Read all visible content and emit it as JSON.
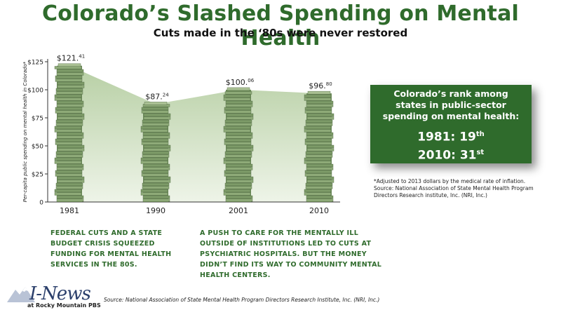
{
  "header": {
    "title": "Colorado’s Slashed Spending on Mental Health",
    "subtitle": "Cuts made in the ‘80s were never restored"
  },
  "chart_data": {
    "type": "bar",
    "categories": [
      "1981",
      "1990",
      "2001",
      "2010"
    ],
    "values": [
      121.41,
      87.24,
      100.06,
      96.8
    ],
    "value_labels": [
      {
        "main": "$121.",
        "cents": "41"
      },
      {
        "main": "$87.",
        "cents": "24"
      },
      {
        "main": "$100.",
        "cents": "06"
      },
      {
        "main": "$96.",
        "cents": "80"
      }
    ],
    "ylabel": "Per-capita public spending on mental health in Colorado*",
    "yticks": [
      "0",
      "$25",
      "$50",
      "$75",
      "$100",
      "$125"
    ],
    "ylim": [
      0,
      125
    ],
    "bar_style": "stacked money bills",
    "area_fill": "green gradient between bar tops",
    "colors": {
      "accent": "#2f6b2c",
      "money": "#7c9a67"
    }
  },
  "rank_box": {
    "heading": "Colorado’s rank among states in public-sector spending on mental health:",
    "line1_main": "1981: 19",
    "line1_sup": "th",
    "line2_main": "2010: 31",
    "line2_sup": "st"
  },
  "footnote": {
    "line1": "*Adjusted to 2013 dollars by the medical rate of inflation.",
    "line2": "Source: National Association of State Mental Health Program Directors Research institute, Inc. (NRI, Inc.)"
  },
  "captions": {
    "left": "FEDERAL CUTS AND A STATE BUDGET CRISIS SQUEEZED FUNDING FOR MENTAL HEALTH SERVICES IN THE 80S.",
    "right": "A PUSH TO CARE FOR THE MENTALLY ILL OUTSIDE OF INSTITUTIONS LED TO CUTS AT PSYCHIATRIC HOSPITALS. BUT THE MONEY DIDN’T FIND ITS WAY TO COMMUNITY MENTAL HEALTH CENTERS."
  },
  "logo": {
    "main": "I-News",
    "tagline": "at Rocky Mountain PBS"
  },
  "source": "Source: National Association of State Mental Health Program Directors Research Institute, Inc. (NRI, Inc.)"
}
